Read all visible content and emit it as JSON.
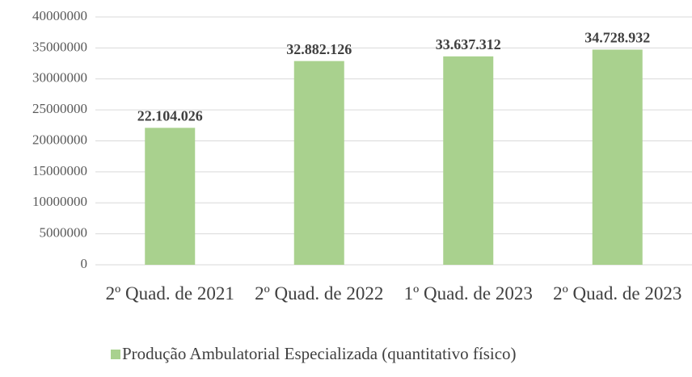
{
  "chart_data": {
    "type": "bar",
    "categories": [
      "2º Quad. de 2021",
      "2º Quad. de 2022",
      "1º Quad. de 2023",
      "2º Quad. de 2023"
    ],
    "series": [
      {
        "name": "Produção Ambulatorial Especializada (quantitativo físico)",
        "color": "#a9d18e",
        "values": [
          22104026,
          32882126,
          33637312,
          34728932
        ],
        "value_labels": [
          "22.104.026",
          "32.882.126",
          "33.637.312",
          "34.728.932"
        ]
      }
    ],
    "ylim": [
      0,
      40000000
    ],
    "yticks": [
      0,
      5000000,
      10000000,
      15000000,
      20000000,
      25000000,
      30000000,
      35000000,
      40000000
    ],
    "grid": true
  }
}
